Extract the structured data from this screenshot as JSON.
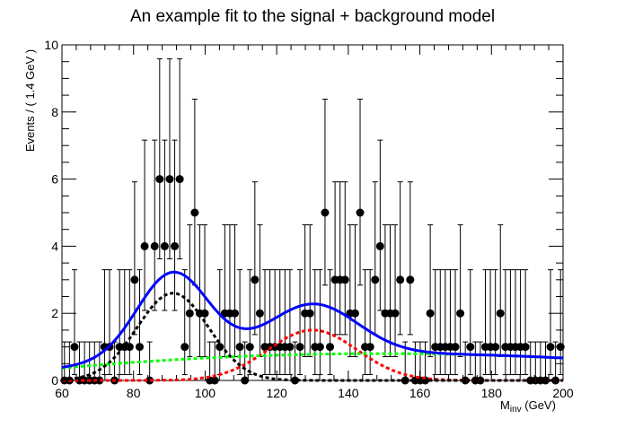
{
  "chart_data": {
    "type": "scatter",
    "title": "An example fit to the signal + background model",
    "xlabel_main": "M",
    "xlabel_sub": "inv",
    "xlabel_unit": " (GeV)",
    "ylabel": "Events / ( 1.4 GeV )",
    "xlim": [
      60,
      200
    ],
    "ylim": [
      0,
      10
    ],
    "x_ticks": [
      "60",
      "80",
      "100",
      "120",
      "140",
      "160",
      "180",
      "200"
    ],
    "y_ticks": [
      "0",
      "2",
      "4",
      "6",
      "8",
      "10"
    ],
    "bin_width": 1.4,
    "values": [
      0,
      0,
      1,
      0,
      0,
      0,
      0,
      0,
      1,
      1,
      0,
      1,
      1,
      1,
      3,
      1,
      4,
      0,
      4,
      6,
      4,
      6,
      4,
      6,
      1,
      2,
      5,
      2,
      2,
      0,
      0,
      1,
      2,
      2,
      2,
      1,
      0,
      1,
      3,
      2,
      1,
      1,
      1,
      1,
      1,
      1,
      0,
      1,
      2,
      2,
      1,
      1,
      5,
      1,
      3,
      3,
      3,
      2,
      2,
      5,
      1,
      1,
      3,
      4,
      2,
      2,
      2,
      3,
      0,
      3,
      0,
      0,
      0,
      2,
      1,
      1,
      1,
      1,
      1,
      2,
      0,
      1,
      0,
      0,
      1,
      1,
      1,
      2,
      1,
      1,
      1,
      1,
      1,
      0,
      0,
      0,
      0,
      1,
      0,
      1
    ],
    "curves": {
      "background": {
        "color": "#00ff00",
        "style": "dashed",
        "peak_value": 0.8,
        "peak_x": 150,
        "curvature_scale": 90,
        "drop": 0.43
      },
      "signal1": {
        "color": "#000000",
        "style": "dashed",
        "mean": 91,
        "sigma": 10,
        "amplitude": 2.6
      },
      "signal2": {
        "color": "#ff0000",
        "style": "dashed",
        "mean": 130,
        "sigma": 12.5,
        "amplitude": 1.5
      },
      "total": {
        "color": "#0000ff",
        "style": "solid"
      }
    }
  }
}
